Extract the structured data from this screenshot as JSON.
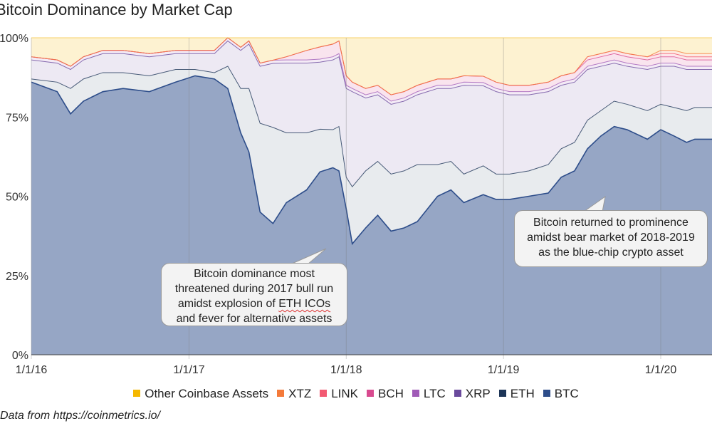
{
  "title": "Bitcoin Dominance by Market Cap",
  "source": "Data from https://coinmetrics.io/",
  "annotations": [
    {
      "lines": [
        "Bitcoin dominance most",
        "threatened during 2017 bull run",
        "amidst explosion of ETH ICOs",
        "and fever for alternative assets"
      ],
      "underlined": "ETH ICOs"
    },
    {
      "lines": [
        "Bitcoin returned to prominence",
        "amidst bear market of 2018-2019",
        "as the blue-chip crypto asset"
      ]
    }
  ],
  "colors": {
    "BTC": "#2d4d8a",
    "ETH": "#1d3557",
    "XRP": "#6a4a9c",
    "LTC": "#a05bb7",
    "BCH": "#d84a8f",
    "LINK": "#f25a72",
    "XTZ": "#f47a3a",
    "Other": "#f5b800"
  },
  "chart_data": {
    "type": "area",
    "stacked": true,
    "percent": true,
    "title": "Bitcoin Dominance by Market Cap",
    "xlabel": "",
    "ylabel": "",
    "ylim": [
      0,
      100
    ],
    "yticks": [
      "0%",
      "25%",
      "50%",
      "75%",
      "100%"
    ],
    "xticks": [
      "1/1/16",
      "1/1/17",
      "1/1/18",
      "1/1/19",
      "1/1/20"
    ],
    "x": [
      "2016-01-01",
      "2016-03-01",
      "2016-04-01",
      "2016-05-01",
      "2016-06-15",
      "2016-08-01",
      "2016-10-01",
      "2016-12-01",
      "2017-01-15",
      "2017-03-01",
      "2017-04-01",
      "2017-05-01",
      "2017-05-20",
      "2017-06-15",
      "2017-07-15",
      "2017-08-15",
      "2017-10-01",
      "2017-11-01",
      "2017-12-01",
      "2017-12-15",
      "2018-01-01",
      "2018-01-15",
      "2018-02-15",
      "2018-03-15",
      "2018-04-15",
      "2018-05-15",
      "2018-06-15",
      "2018-08-01",
      "2018-09-01",
      "2018-10-01",
      "2018-11-15",
      "2018-12-15",
      "2019-01-15",
      "2019-03-01",
      "2019-04-15",
      "2019-05-15",
      "2019-06-15",
      "2019-07-15",
      "2019-08-15",
      "2019-09-15",
      "2019-10-15",
      "2019-12-01",
      "2020-01-01",
      "2020-02-01",
      "2020-03-01",
      "2020-03-20"
    ],
    "series": [
      {
        "name": "BTC",
        "values": [
          86,
          83,
          76,
          80,
          83,
          84,
          83,
          86,
          88,
          87,
          84,
          70,
          64,
          45,
          41,
          48,
          52,
          60,
          59,
          58,
          46,
          35,
          40,
          44,
          39,
          40,
          42,
          50,
          52,
          48,
          50,
          49,
          49,
          50,
          51,
          56,
          58,
          65,
          69,
          72,
          71,
          68,
          71,
          69,
          67,
          68
        ]
      },
      {
        "name": "ETH",
        "values": [
          1,
          3,
          8,
          7,
          6,
          5,
          5,
          4,
          2,
          2,
          7,
          14,
          20,
          28,
          30,
          22,
          18,
          14,
          12,
          14,
          10,
          18,
          18,
          17,
          18,
          18,
          18,
          10,
          9,
          9,
          9,
          8,
          8,
          8,
          9,
          9,
          9,
          9,
          8,
          8,
          8,
          9,
          8,
          9,
          10,
          10
        ]
      },
      {
        "name": "XRP",
        "values": [
          6,
          6,
          6,
          6,
          6,
          6,
          6,
          5,
          5,
          6,
          8,
          12,
          14,
          18,
          20,
          22,
          22,
          22,
          22,
          22,
          28,
          30,
          23,
          21,
          22,
          22,
          22,
          24,
          23,
          28,
          25,
          26,
          25,
          24,
          23,
          20,
          19,
          16,
          14,
          12,
          12,
          13,
          12,
          13,
          13,
          12
        ]
      },
      {
        "name": "LTC",
        "values": [
          1,
          1,
          1,
          1,
          1,
          1,
          1,
          1,
          1,
          1,
          1,
          1,
          1,
          1,
          1,
          1,
          1,
          1,
          1,
          1,
          1,
          1,
          1,
          1,
          1,
          1,
          1,
          1,
          1,
          1,
          1,
          1,
          1,
          1,
          1,
          1,
          1,
          1,
          1,
          1,
          1,
          1,
          1,
          1,
          1,
          1
        ]
      },
      {
        "name": "BCH",
        "values": [
          0,
          0,
          0,
          0,
          0,
          0,
          0,
          0,
          0,
          0,
          0,
          0,
          0,
          0,
          0,
          1,
          3,
          4,
          4,
          4,
          3,
          2,
          2,
          2,
          2,
          2,
          2,
          2,
          2,
          2,
          2,
          2,
          2,
          2,
          2,
          2,
          2,
          2,
          2,
          2,
          2,
          2,
          2,
          2,
          2,
          2
        ]
      },
      {
        "name": "LINK",
        "values": [
          0,
          0,
          0,
          0,
          0,
          0,
          0,
          0,
          0,
          0,
          0,
          0,
          0,
          0,
          0,
          0,
          0,
          0,
          0,
          0,
          0,
          0,
          0,
          0,
          0,
          0,
          0,
          0,
          0,
          0,
          0,
          0,
          0,
          0,
          0,
          0,
          0,
          1,
          1,
          1,
          1,
          1,
          1,
          1,
          1,
          1
        ]
      },
      {
        "name": "XTZ",
        "values": [
          0,
          0,
          0,
          0,
          0,
          0,
          0,
          0,
          0,
          0,
          0,
          0,
          0,
          0,
          0,
          0,
          0,
          0,
          0,
          0,
          0,
          0,
          0,
          0,
          0,
          0,
          0,
          0,
          0,
          0,
          0,
          0,
          0,
          0,
          0,
          0,
          0,
          0,
          0,
          0,
          0,
          0,
          1,
          1,
          1,
          1
        ]
      },
      {
        "name": "Other Coinbase Assets",
        "values": [
          6,
          7,
          9,
          6,
          4,
          4,
          5,
          4,
          4,
          4,
          0,
          3,
          1,
          8,
          7,
          6,
          4,
          3,
          2,
          1,
          12,
          14,
          16,
          15,
          18,
          17,
          15,
          13,
          13,
          12,
          12,
          14,
          15,
          15,
          14,
          12,
          11,
          6,
          5,
          4,
          5,
          6,
          4,
          4,
          5,
          5
        ]
      }
    ],
    "legend": [
      "Other Coinbase Assets",
      "XTZ",
      "LINK",
      "BCH",
      "LTC",
      "XRP",
      "ETH",
      "BTC"
    ],
    "legend_position": "bottom",
    "grid": "vertical at year ticks"
  }
}
